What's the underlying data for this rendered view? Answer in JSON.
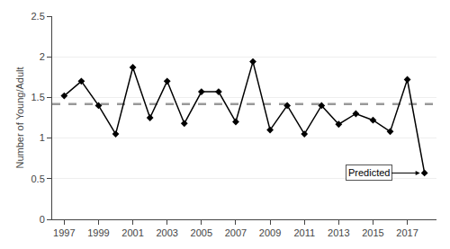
{
  "chart_data": {
    "type": "line",
    "x": [
      1997,
      1998,
      1999,
      2000,
      2001,
      2002,
      2003,
      2004,
      2005,
      2006,
      2007,
      2008,
      2009,
      2010,
      2011,
      2012,
      2013,
      2014,
      2015,
      2016,
      2017,
      2018
    ],
    "values": [
      1.52,
      1.7,
      1.4,
      1.05,
      1.87,
      1.25,
      1.7,
      1.18,
      1.57,
      1.57,
      1.2,
      1.94,
      1.1,
      1.4,
      1.05,
      1.4,
      1.17,
      1.3,
      1.22,
      1.08,
      1.72,
      0.57
    ],
    "color": "#000000",
    "marker": "diamond",
    "line_style": "solid",
    "reference_line": {
      "y": 1.42,
      "color": "#999999",
      "line_style": "dashed"
    },
    "annotations": [
      {
        "text": "Predicted",
        "x": 2018,
        "y": 0.57
      }
    ],
    "y_label": "Number of Young/Adult",
    "xlim": [
      1996.3,
      2018.7
    ],
    "xticks": [
      1997,
      1999,
      2001,
      2003,
      2005,
      2007,
      2009,
      2011,
      2013,
      2015,
      2017
    ],
    "ylim": [
      0,
      2.5
    ],
    "yticks": [
      0,
      0.5,
      1,
      1.5,
      2,
      2.5
    ],
    "grid": "y"
  }
}
